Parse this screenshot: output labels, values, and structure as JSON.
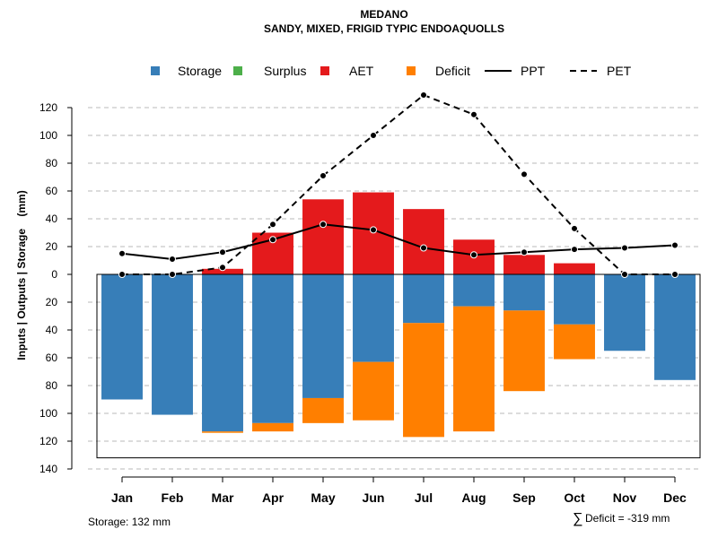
{
  "chart_data": {
    "type": "bar",
    "title": "MEDANO",
    "subtitle": "SANDY, MIXED, FRIGID TYPIC ENDOAQUOLLS",
    "ylabel": "Inputs | Outputs | Storage    (mm)",
    "ylim": [
      -140,
      130
    ],
    "yticks": [
      120,
      100,
      80,
      60,
      40,
      20,
      0,
      -20,
      -40,
      -60,
      -80,
      -100,
      -120,
      -140
    ],
    "ytick_labels": [
      "120",
      "100",
      "80",
      "60",
      "40",
      "20",
      "0",
      "20",
      "40",
      "60",
      "80",
      "100",
      "120",
      "140"
    ],
    "categories": [
      "Jan",
      "Feb",
      "Mar",
      "Apr",
      "May",
      "Jun",
      "Jul",
      "Aug",
      "Sep",
      "Oct",
      "Nov",
      "Dec"
    ],
    "series": [
      {
        "name": "Storage",
        "color": "#377eb8",
        "values": [
          -90,
          -101,
          -113,
          -107,
          -89,
          -63,
          -35,
          -23,
          -26,
          -36,
          -55,
          -76
        ]
      },
      {
        "name": "Surplus",
        "color": "#4daf4a",
        "values": [
          0,
          0,
          0,
          0,
          0,
          0,
          0,
          0,
          0,
          0,
          0,
          0
        ]
      },
      {
        "name": "AET",
        "color": "#e41a1c",
        "values": [
          0,
          0,
          4,
          30,
          54,
          59,
          47,
          25,
          14,
          8,
          0,
          0
        ]
      },
      {
        "name": "Deficit",
        "color": "#ff7f00",
        "values": [
          0,
          0,
          -1,
          -6,
          -18,
          -42,
          -82,
          -90,
          -58,
          -25,
          0,
          0
        ]
      },
      {
        "name": "PPT",
        "line": "solid",
        "values": [
          15,
          11,
          16,
          25,
          36,
          32,
          19,
          14,
          16,
          18,
          19,
          21
        ]
      },
      {
        "name": "PET",
        "line": "dashed",
        "values": [
          0,
          0,
          5,
          36,
          71,
          100,
          129,
          115,
          72,
          33,
          0,
          0
        ]
      }
    ],
    "storage_capacity": 132,
    "legend_position": "top",
    "grid": "horizontal dashed",
    "footer_left": "Storage: 132 mm",
    "footer_right_symbol": "∑",
    "footer_right": "Deficit = -319 mm"
  }
}
